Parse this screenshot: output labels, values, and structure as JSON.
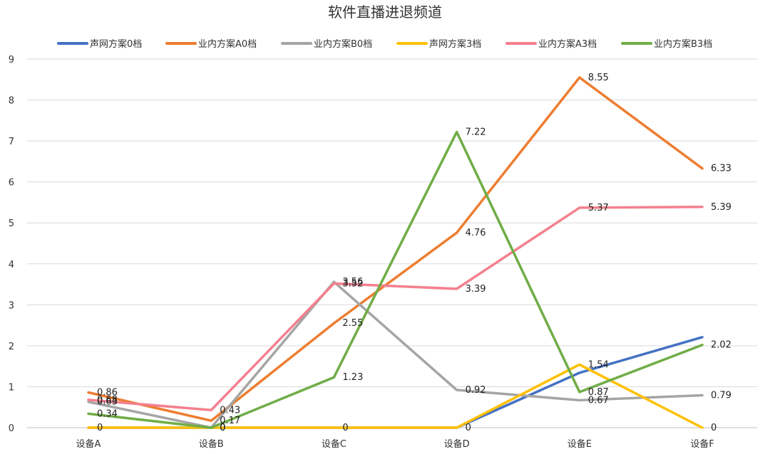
{
  "chart_data": {
    "type": "line",
    "title": "软件直播进退频道",
    "categories": [
      "设备A",
      "设备B",
      "设备C",
      "设备D",
      "设备E",
      "设备F"
    ],
    "ylim": [
      0,
      9
    ],
    "yticks": [
      "0",
      "1",
      "2",
      "3",
      "4",
      "5",
      "6",
      "7",
      "8",
      "9"
    ],
    "grid": true,
    "legend": "top",
    "series": [
      {
        "name": "声网方案0档",
        "color": "#4472C4",
        "values": [
          0,
          0,
          0,
          0,
          1.34,
          2.21
        ],
        "labels": [
          "",
          "",
          "",
          "",
          "",
          ""
        ]
      },
      {
        "name": "业内方案A0档",
        "color": "#ED7D31",
        "values": [
          0.86,
          0.17,
          2.55,
          4.76,
          8.55,
          6.33
        ],
        "labels": [
          "0.86",
          "0.17",
          "2.55",
          "4.76",
          "8.55",
          "6.33"
        ]
      },
      {
        "name": "业内方案B0档",
        "color": "#A5A5A5",
        "values": [
          0.63,
          0,
          3.56,
          0.92,
          0.67,
          0.79
        ],
        "labels": [
          "0.63",
          "0",
          "3.56",
          "0.92",
          "0.67",
          "0.79"
        ]
      },
      {
        "name": "声网方案3档",
        "color": "#FFC000",
        "values": [
          0,
          0,
          0,
          0,
          1.54,
          0
        ],
        "labels": [
          "0",
          "0",
          "0",
          "0",
          "1.54",
          "0"
        ]
      },
      {
        "name": "业内方案A3档",
        "color": "#F4808E",
        "values": [
          0.68,
          0.43,
          3.52,
          3.39,
          5.37,
          5.39
        ],
        "labels": [
          "0.68",
          "0.43",
          "3.52",
          "3.39",
          "5.37",
          "5.39"
        ]
      },
      {
        "name": "业内方案B3档",
        "color": "#70AD47",
        "values": [
          0.34,
          0,
          1.23,
          7.22,
          0.87,
          2.02
        ],
        "labels": [
          "0.34",
          "0",
          "1.23",
          "7.22",
          "0.87",
          "2.02"
        ]
      }
    ]
  }
}
